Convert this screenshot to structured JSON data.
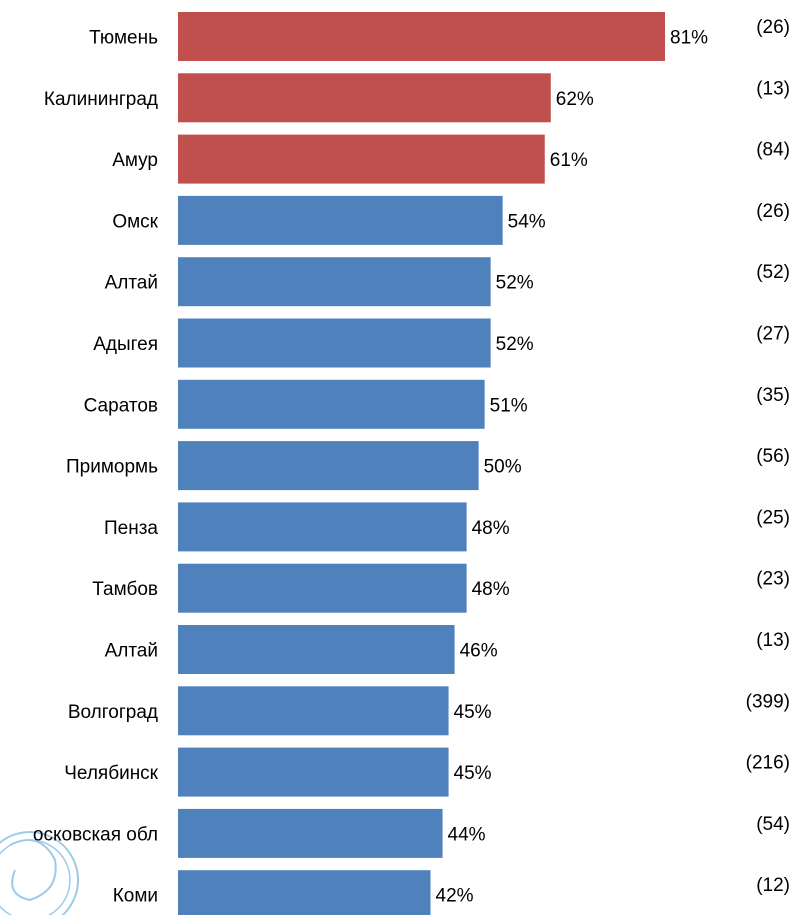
{
  "chart_data": {
    "type": "bar",
    "orientation": "horizontal",
    "categories": [
      "Тюмень",
      "Калининград",
      "Амур",
      "Омск",
      "Алтай",
      "Адыгея",
      "Саратов",
      "Примормь",
      "Пенза",
      "Тамбов",
      "Алтай",
      "Волгоград",
      "Челябинск",
      "осковская обл",
      "Коми"
    ],
    "values": [
      81,
      62,
      61,
      54,
      52,
      52,
      51,
      50,
      48,
      48,
      46,
      45,
      45,
      44,
      42
    ],
    "value_labels": [
      "81%",
      "62%",
      "61%",
      "54%",
      "52%",
      "52%",
      "51%",
      "50%",
      "48%",
      "48%",
      "46%",
      "45%",
      "45%",
      "44%",
      "42%"
    ],
    "sample_labels": [
      "(26)",
      "(13)",
      "(84)",
      "(26)",
      "(52)",
      "(27)",
      "(35)",
      "(56)",
      "(25)",
      "(23)",
      "(13)",
      "(399)",
      "(216)",
      "(54)",
      "(12)"
    ],
    "bar_colors": [
      "#c0504d",
      "#c0504d",
      "#c0504d",
      "#4f81bd",
      "#4f81bd",
      "#4f81bd",
      "#4f81bd",
      "#4f81bd",
      "#4f81bd",
      "#4f81bd",
      "#4f81bd",
      "#4f81bd",
      "#4f81bd",
      "#4f81bd",
      "#4f81bd"
    ],
    "xlim": [
      0,
      100
    ],
    "grid": false,
    "legend": "none"
  }
}
